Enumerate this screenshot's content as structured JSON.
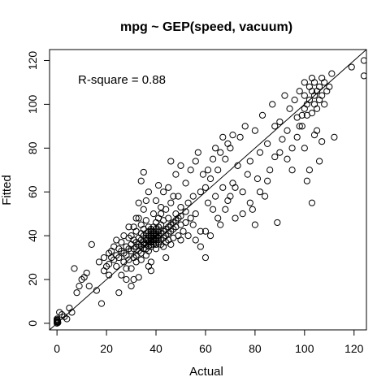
{
  "chart_data": {
    "type": "scatter",
    "title": "mpg ~ GEP(speed, vacuum)",
    "xlabel": "Actual",
    "ylabel": "Fitted",
    "xlim": [
      -3,
      125
    ],
    "ylim": [
      -3,
      125
    ],
    "xticks": [
      0,
      20,
      40,
      60,
      80,
      100,
      120
    ],
    "yticks": [
      0,
      20,
      40,
      60,
      80,
      100,
      120
    ],
    "annotation": "R-square = 0.88",
    "reference_line": {
      "type": "identity",
      "from": [
        -3,
        -3
      ],
      "to": [
        125,
        125
      ]
    },
    "grid": false,
    "marker": "open-circle",
    "series": [
      {
        "points": [
          [
            0,
            0
          ],
          [
            0,
            0.5
          ],
          [
            0,
            1
          ],
          [
            0,
            1.5
          ],
          [
            0,
            2
          ],
          [
            0.3,
            0.8
          ],
          [
            0.2,
            1.5
          ],
          [
            0.4,
            0.3
          ],
          [
            1,
            5
          ],
          [
            2,
            4
          ],
          [
            3,
            3
          ],
          [
            4,
            2
          ],
          [
            5,
            7
          ],
          [
            6,
            5
          ],
          [
            8,
            14
          ],
          [
            7,
            25
          ],
          [
            9,
            17
          ],
          [
            10,
            20
          ],
          [
            12,
            23
          ],
          [
            13,
            17
          ],
          [
            11,
            21
          ],
          [
            14,
            36
          ],
          [
            16,
            15
          ],
          [
            17,
            28
          ],
          [
            18,
            9
          ],
          [
            19,
            24
          ],
          [
            19,
            30
          ],
          [
            20,
            26
          ],
          [
            21,
            32
          ],
          [
            21,
            27
          ],
          [
            21,
            22
          ],
          [
            22,
            33
          ],
          [
            22,
            30
          ],
          [
            23,
            35
          ],
          [
            23,
            29
          ],
          [
            24,
            31
          ],
          [
            24,
            26
          ],
          [
            25,
            34
          ],
          [
            25,
            30
          ],
          [
            25,
            14
          ],
          [
            26,
            33
          ],
          [
            26,
            37
          ],
          [
            27,
            32
          ],
          [
            27,
            28
          ],
          [
            28,
            35
          ],
          [
            28,
            31
          ],
          [
            28,
            25
          ],
          [
            29,
            34
          ],
          [
            29,
            29
          ],
          [
            29,
            39
          ],
          [
            30,
            33
          ],
          [
            30,
            36
          ],
          [
            30,
            40
          ],
          [
            30,
            25
          ],
          [
            31,
            38
          ],
          [
            31,
            34
          ],
          [
            31,
            30
          ],
          [
            31,
            44
          ],
          [
            32,
            35
          ],
          [
            32,
            31
          ],
          [
            32,
            28
          ],
          [
            32,
            42
          ],
          [
            32,
            37
          ],
          [
            33,
            36
          ],
          [
            33,
            33
          ],
          [
            33,
            39
          ],
          [
            33,
            21
          ],
          [
            33,
            48
          ],
          [
            34,
            38
          ],
          [
            34,
            35
          ],
          [
            34,
            32
          ],
          [
            34,
            41
          ],
          [
            34,
            45
          ],
          [
            34,
            29
          ],
          [
            35,
            37
          ],
          [
            35,
            34
          ],
          [
            35,
            40
          ],
          [
            35,
            43
          ],
          [
            35,
            36
          ],
          [
            35,
            52
          ],
          [
            36,
            38
          ],
          [
            36,
            36
          ],
          [
            36,
            34
          ],
          [
            36,
            41
          ],
          [
            36,
            39
          ],
          [
            36,
            31
          ],
          [
            36,
            47
          ],
          [
            37,
            40
          ],
          [
            37,
            37
          ],
          [
            37,
            35
          ],
          [
            37,
            38
          ],
          [
            37,
            42
          ],
          [
            37,
            33
          ],
          [
            37,
            44
          ],
          [
            37,
            26
          ],
          [
            38,
            39
          ],
          [
            38,
            41
          ],
          [
            38,
            36
          ],
          [
            38,
            38
          ],
          [
            38,
            43
          ],
          [
            38,
            35
          ],
          [
            38,
            40
          ],
          [
            38,
            37
          ],
          [
            38,
            42
          ],
          [
            38,
            28
          ],
          [
            39,
            40
          ],
          [
            39,
            38
          ],
          [
            39,
            42
          ],
          [
            39,
            36
          ],
          [
            39,
            44
          ],
          [
            39,
            39
          ],
          [
            39,
            41
          ],
          [
            39,
            37
          ],
          [
            40,
            40
          ],
          [
            40,
            38
          ],
          [
            40,
            43
          ],
          [
            40,
            36
          ],
          [
            40,
            41
          ],
          [
            40,
            39
          ],
          [
            40,
            46
          ],
          [
            40,
            34
          ],
          [
            41,
            42
          ],
          [
            41,
            39
          ],
          [
            41,
            37
          ],
          [
            41,
            44
          ],
          [
            41,
            40
          ],
          [
            41,
            48
          ],
          [
            42,
            41
          ],
          [
            42,
            38
          ],
          [
            42,
            45
          ],
          [
            42,
            36
          ],
          [
            42,
            50
          ],
          [
            43,
            42
          ],
          [
            43,
            39
          ],
          [
            43,
            47
          ],
          [
            43,
            35
          ],
          [
            44,
            43
          ],
          [
            44,
            40
          ],
          [
            44,
            37
          ],
          [
            44,
            52
          ],
          [
            45,
            44
          ],
          [
            45,
            41
          ],
          [
            45,
            38
          ],
          [
            45,
            48
          ],
          [
            46,
            45
          ],
          [
            46,
            42
          ],
          [
            46,
            55
          ],
          [
            46,
            36
          ],
          [
            47,
            46
          ],
          [
            47,
            43
          ],
          [
            47,
            39
          ],
          [
            48,
            47
          ],
          [
            48,
            44
          ],
          [
            48,
            50
          ],
          [
            49,
            48
          ],
          [
            49,
            40
          ],
          [
            50,
            49
          ],
          [
            50,
            45
          ],
          [
            50,
            53
          ],
          [
            50,
            38
          ],
          [
            52,
            51
          ],
          [
            52,
            46
          ],
          [
            53,
            55
          ],
          [
            54,
            48
          ],
          [
            55,
            58
          ],
          [
            56,
            50
          ],
          [
            58,
            60
          ],
          [
            58,
            42
          ],
          [
            60,
            62
          ],
          [
            60,
            30
          ],
          [
            61,
            55
          ],
          [
            62,
            66
          ],
          [
            63,
            52
          ],
          [
            64,
            58
          ],
          [
            65,
            70
          ],
          [
            66,
            45
          ],
          [
            67,
            62
          ],
          [
            68,
            75
          ],
          [
            69,
            56
          ],
          [
            70,
            80
          ],
          [
            71,
            64
          ],
          [
            72,
            48
          ],
          [
            73,
            72
          ],
          [
            74,
            85
          ],
          [
            75,
            60
          ],
          [
            76,
            90
          ],
          [
            77,
            68
          ],
          [
            78,
            74
          ],
          [
            79,
            52
          ],
          [
            80,
            88
          ],
          [
            81,
            66
          ],
          [
            82,
            78
          ],
          [
            83,
            95
          ],
          [
            84,
            58
          ],
          [
            85,
            82
          ],
          [
            86,
            70
          ],
          [
            87,
            100
          ],
          [
            88,
            76
          ],
          [
            89,
            46
          ],
          [
            90,
            92
          ],
          [
            91,
            84
          ],
          [
            92,
            104
          ],
          [
            93,
            88
          ],
          [
            94,
            98
          ],
          [
            95,
            80
          ],
          [
            96,
            102
          ],
          [
            97,
            94
          ],
          [
            98,
            106
          ],
          [
            99,
            90
          ],
          [
            100,
            104
          ],
          [
            100,
            98
          ],
          [
            100,
            110
          ],
          [
            101,
            100
          ],
          [
            101,
            95
          ],
          [
            102,
            108
          ],
          [
            102,
            102
          ],
          [
            103,
            106
          ],
          [
            103,
            96
          ],
          [
            103,
            112
          ],
          [
            104,
            104
          ],
          [
            104,
            100
          ],
          [
            104,
            110
          ],
          [
            105,
            106
          ],
          [
            105,
            98
          ],
          [
            106,
            108
          ],
          [
            106,
            102
          ],
          [
            107,
            112
          ],
          [
            107,
            104
          ],
          [
            108,
            110
          ],
          [
            108,
            100
          ],
          [
            109,
            106
          ],
          [
            110,
            108
          ],
          [
            111,
            114
          ],
          [
            112,
            85
          ],
          [
            119,
            117
          ],
          [
            124,
            120
          ],
          [
            124,
            113
          ],
          [
            100,
            80
          ],
          [
            101,
            65
          ],
          [
            102,
            70
          ],
          [
            103,
            55
          ],
          [
            104,
            86
          ],
          [
            105,
            88
          ],
          [
            106,
            74
          ],
          [
            107,
            83
          ],
          [
            98,
            90
          ],
          [
            99,
            95
          ],
          [
            97,
            85
          ],
          [
            95,
            70
          ],
          [
            93,
            75
          ],
          [
            90,
            78
          ],
          [
            88,
            90
          ],
          [
            85,
            65
          ],
          [
            82,
            60
          ],
          [
            80,
            45
          ],
          [
            78,
            55
          ],
          [
            75,
            50
          ],
          [
            72,
            62
          ],
          [
            70,
            58
          ],
          [
            68,
            52
          ],
          [
            65,
            48
          ],
          [
            62,
            40
          ],
          [
            60,
            42
          ],
          [
            58,
            35
          ],
          [
            56,
            38
          ],
          [
            55,
            45
          ],
          [
            53,
            40
          ],
          [
            51,
            42
          ],
          [
            24,
            38
          ],
          [
            26,
            22
          ],
          [
            27,
            40
          ],
          [
            28,
            20
          ],
          [
            29,
            44
          ],
          [
            30,
            17
          ],
          [
            31,
            20
          ],
          [
            32,
            48
          ],
          [
            33,
            55
          ],
          [
            34,
            65
          ],
          [
            35,
            69
          ],
          [
            36,
            56
          ],
          [
            37,
            60
          ],
          [
            38,
            24
          ],
          [
            39,
            50
          ],
          [
            40,
            56
          ],
          [
            41,
            63
          ],
          [
            42,
            53
          ],
          [
            43,
            60
          ],
          [
            44,
            30
          ],
          [
            45,
            62
          ],
          [
            46,
            74
          ],
          [
            47,
            58
          ],
          [
            48,
            68
          ],
          [
            49,
            58
          ],
          [
            50,
            72
          ],
          [
            52,
            64
          ],
          [
            54,
            70
          ],
          [
            56,
            74
          ],
          [
            57,
            78
          ],
          [
            59,
            68
          ],
          [
            61,
            70
          ],
          [
            63,
            75
          ],
          [
            64,
            80
          ],
          [
            66,
            78
          ],
          [
            67,
            85
          ],
          [
            69,
            82
          ],
          [
            71,
            86
          ]
        ]
      }
    ]
  }
}
